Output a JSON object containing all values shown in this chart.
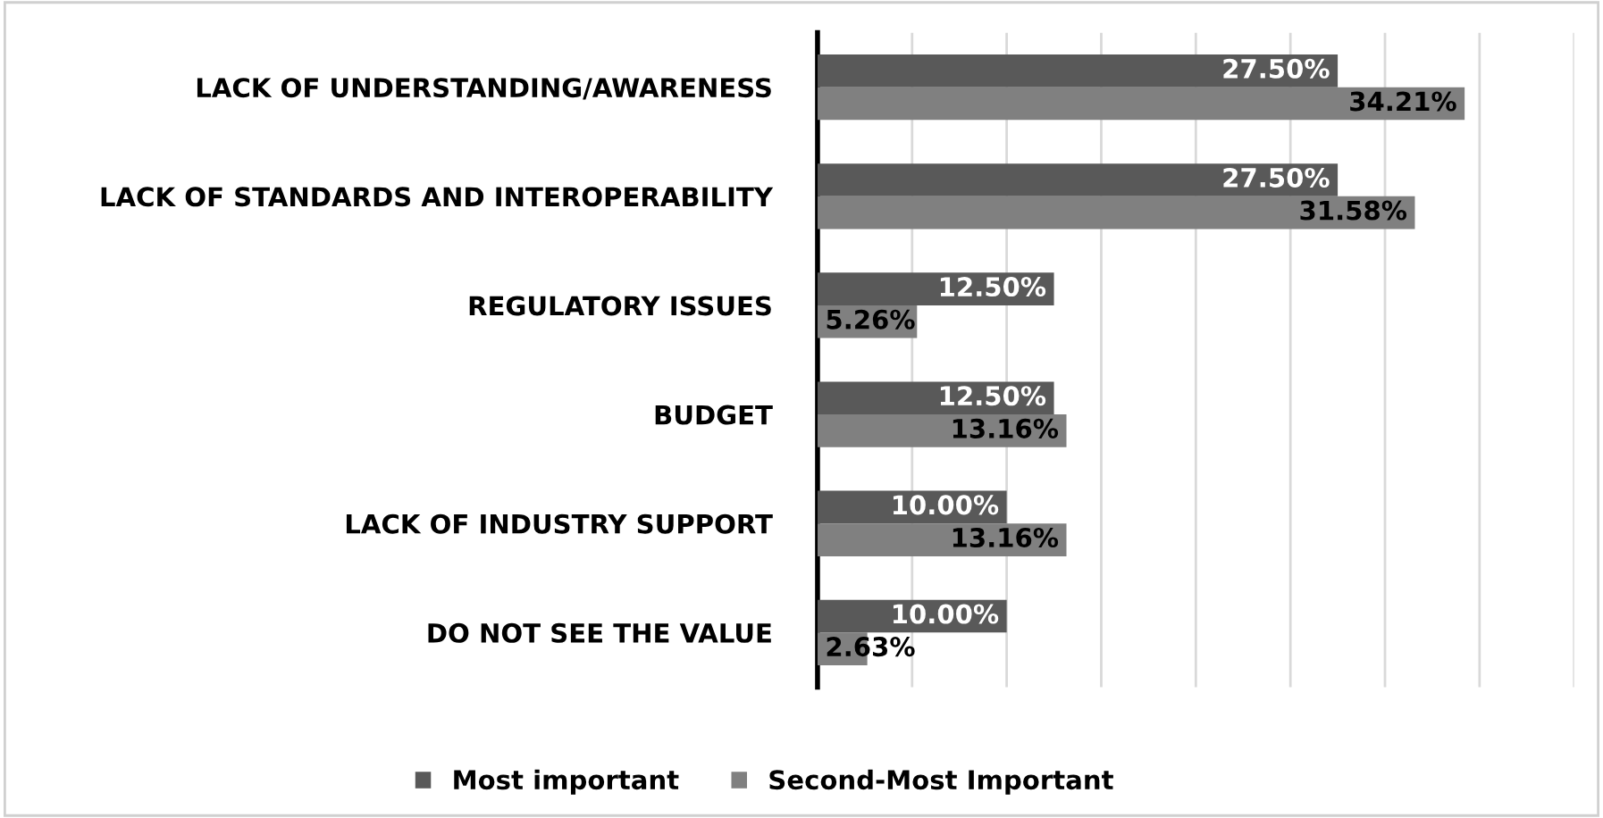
{
  "chart_data": {
    "type": "bar",
    "orientation": "horizontal",
    "categories": [
      "LACK OF UNDERSTANDING/AWARENESS",
      "LACK OF STANDARDS AND INTEROPERABILITY",
      "REGULATORY ISSUES",
      "BUDGET",
      "LACK OF INDUSTRY SUPPORT",
      "DO NOT SEE THE VALUE"
    ],
    "series": [
      {
        "name": "Most important",
        "color": "#595959",
        "values": [
          27.5,
          27.5,
          12.5,
          12.5,
          10.0,
          10.0
        ],
        "value_labels": [
          "27.50%",
          "27.50%",
          "12.50%",
          "12.50%",
          "10.00%",
          "10.00%"
        ]
      },
      {
        "name": "Second-Most Important",
        "color": "#808080",
        "values": [
          34.21,
          31.58,
          5.26,
          13.16,
          13.16,
          2.63
        ],
        "value_labels": [
          "34.21%",
          "31.58%",
          "5.26%",
          "13.16%",
          "13.16%",
          "2.63%"
        ]
      }
    ],
    "xlim": [
      0,
      40
    ],
    "xticks": [
      {
        "value": 0,
        "label": null
      },
      {
        "value": 5,
        "label": null
      },
      {
        "value": 10,
        "label": null
      },
      {
        "value": 15,
        "label": null
      },
      {
        "value": 20,
        "label": null
      },
      {
        "value": 25,
        "label": null
      },
      {
        "value": 30,
        "label": null
      },
      {
        "value": 35,
        "label": null
      },
      {
        "value": 40,
        "label": null
      }
    ],
    "tick_labels": "y",
    "grid": "x",
    "legend": "bottom"
  }
}
